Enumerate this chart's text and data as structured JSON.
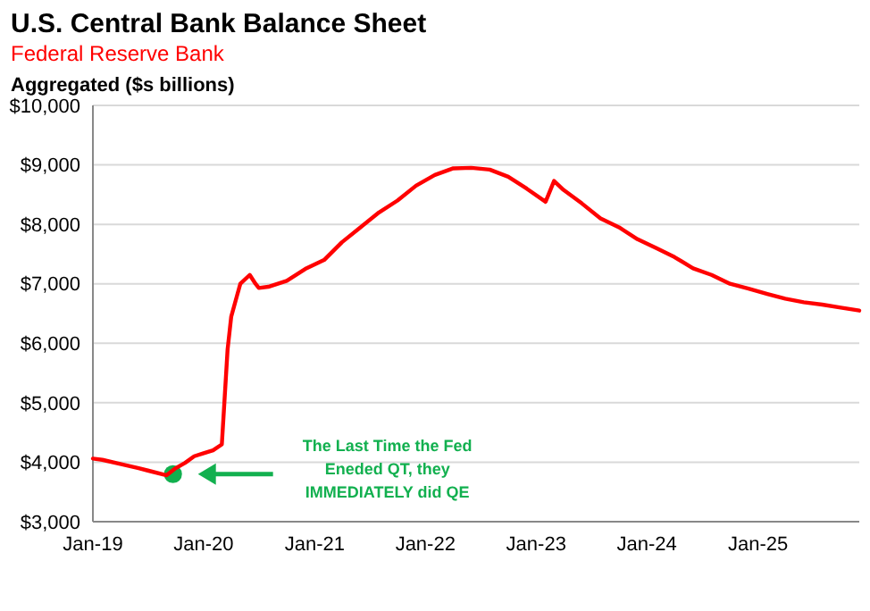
{
  "chart_data": {
    "type": "line",
    "title": "U.S. Central Bank Balance Sheet",
    "subtitle": "Federal Reserve Bank",
    "ylabel": "Aggregated ($s billions)",
    "x": [
      "2019-01",
      "2019-02",
      "2019-04",
      "2019-06",
      "2019-07",
      "2019-09",
      "2019-10",
      "2019-11",
      "2019-12",
      "2020-01",
      "2020-02",
      "2020-03",
      "2020-03-20",
      "2020-04",
      "2020-04-20",
      "2020-05",
      "2020-06",
      "2020-06-20",
      "2020-07",
      "2020-08",
      "2020-10",
      "2020-12",
      "2021-02",
      "2021-04",
      "2021-06",
      "2021-08",
      "2021-10",
      "2021-12",
      "2022-02",
      "2022-04",
      "2022-06",
      "2022-08",
      "2022-10",
      "2022-12",
      "2023-02",
      "2023-03",
      "2023-04",
      "2023-06",
      "2023-08",
      "2023-10",
      "2023-12",
      "2024-02",
      "2024-04",
      "2024-06",
      "2024-08",
      "2024-10",
      "2024-12",
      "2025-02",
      "2025-04",
      "2025-06",
      "2025-08",
      "2025-10",
      "2025-12"
    ],
    "series": [
      {
        "type": "scatter",
        "marker": "circle",
        "color": "#12b04f",
        "x": [
          "2019-09-22"
        ],
        "values": [
          3800
        ]
      },
      {
        "marker": "none",
        "color": "#ff0000",
        "values": [
          4060,
          4040,
          3970,
          3900,
          3860,
          3780,
          3900,
          3990,
          4100,
          4150,
          4200,
          4300,
          5900,
          6450,
          6800,
          7000,
          7150,
          7000,
          6930,
          6950,
          7050,
          7250,
          7400,
          7700,
          7950,
          8200,
          8400,
          8650,
          8830,
          8940,
          8950,
          8920,
          8800,
          8600,
          8380,
          8730,
          8580,
          8350,
          8100,
          7950,
          7750,
          7600,
          7450,
          7260,
          7150,
          7000,
          6920,
          6830,
          6750,
          6690,
          6650,
          6600,
          6550
        ]
      }
    ],
    "ylim": [
      3000,
      10000
    ],
    "yticks": [
      {
        "value": 3000,
        "label": "$3,000"
      },
      {
        "value": 4000,
        "label": "$4,000"
      },
      {
        "value": 5000,
        "label": "$5,000"
      },
      {
        "value": 6000,
        "label": "$6,000"
      },
      {
        "value": 7000,
        "label": "$7,000"
      },
      {
        "value": 8000,
        "label": "$8,000"
      },
      {
        "value": 9000,
        "label": "$9,000"
      },
      {
        "value": 10000,
        "label": "$10,000"
      }
    ],
    "xlim": [
      "2019-01",
      "2025-12"
    ],
    "xticks": [
      {
        "value": "2019-01",
        "label": "Jan-19"
      },
      {
        "value": "2020-01",
        "label": "Jan-20"
      },
      {
        "value": "2021-01",
        "label": "Jan-21"
      },
      {
        "value": "2022-01",
        "label": "Jan-22"
      },
      {
        "value": "2023-01",
        "label": "Jan-23"
      },
      {
        "value": "2024-01",
        "label": "Jan-24"
      },
      {
        "value": "2025-01",
        "label": "Jan-25"
      }
    ],
    "grid": "y",
    "line_style": "solid",
    "annotations": [
      "The Last Time the Fed\nEneded QT, they\nIMMEDIATELY did QE"
    ]
  }
}
